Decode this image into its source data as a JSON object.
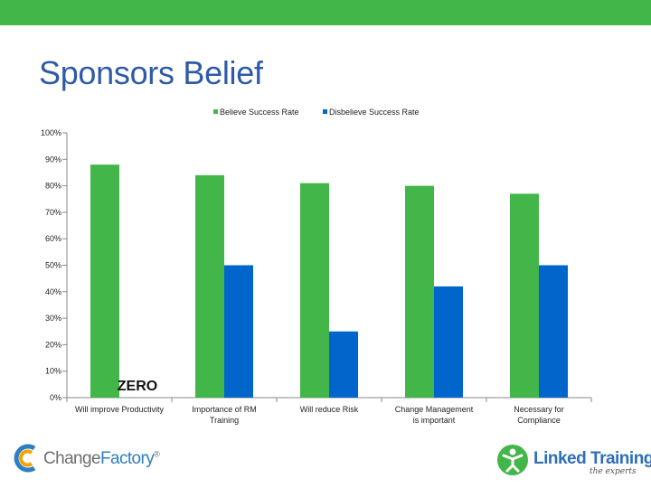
{
  "slide": {
    "title": "Sponsors Belief",
    "annotation": "ZERO",
    "accent_color": "#43b649"
  },
  "chart_data": {
    "type": "bar",
    "categories": [
      "Will improve Productivity",
      "Importance of RM Training",
      "Will reduce Risk",
      "Change Management is important",
      "Necessary for Compliance"
    ],
    "series": [
      {
        "name": "Believe Success Rate",
        "color": "#43b649",
        "values": [
          88,
          84,
          81,
          80,
          77
        ]
      },
      {
        "name": "Disbelieve Success Rate",
        "color": "#0066cc",
        "values": [
          0,
          50,
          25,
          42,
          50
        ]
      }
    ],
    "ylim": [
      0,
      100
    ],
    "yticks": [
      "0%",
      "10%",
      "20%",
      "30%",
      "40%",
      "50%",
      "60%",
      "70%",
      "80%",
      "90%",
      "100%"
    ],
    "grid": false,
    "legend": "top"
  },
  "logos": {
    "left": {
      "name": "ChangeFactory",
      "text_a": "Change",
      "text_b": "Factory",
      "mark": "®",
      "icon": "changefactory-c-icon"
    },
    "right": {
      "name": "Linked Training",
      "text": "Linked Training",
      "tagline": "the experts",
      "icon": "linkedtraining-figure-icon"
    }
  }
}
